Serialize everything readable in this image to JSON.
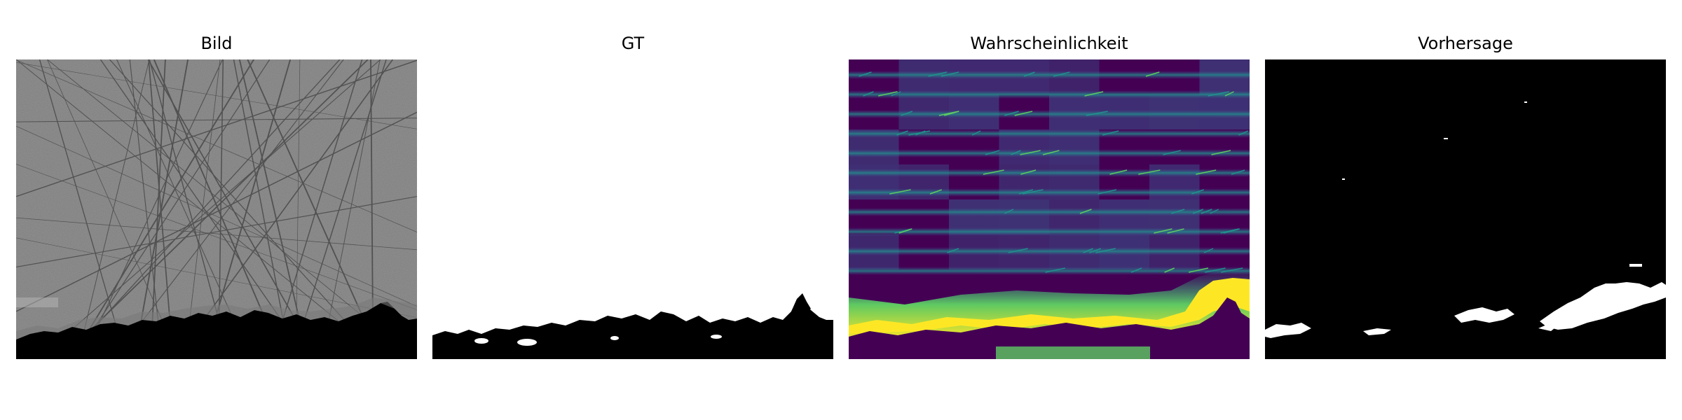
{
  "figure": {
    "panels": [
      {
        "title": "Bild"
      },
      {
        "title": "GT"
      },
      {
        "title": "Wahrscheinlichkeit"
      },
      {
        "title": "Vorhersage"
      }
    ],
    "colormap": [
      "#440154",
      "#3b528b",
      "#21918c",
      "#5ec962",
      "#fde725"
    ]
  }
}
